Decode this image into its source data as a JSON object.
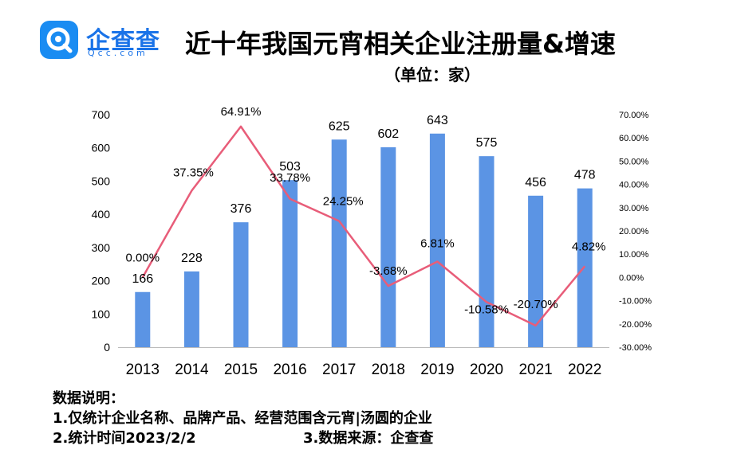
{
  "header": {
    "logo_text": "企查查",
    "logo_sub": "Qcc.com",
    "title": "近十年我国元宵相关企业注册量&增速",
    "unit": "（单位：家）"
  },
  "notes": {
    "heading": "数据说明：",
    "line1": "1.仅统计企业名称、品牌产品、经营范围含元宵|汤圆的企业",
    "line2": "2.统计时间2023/2/2",
    "line3": "3.数据来源：企查查"
  },
  "colors": {
    "bar": "#5b94e4",
    "line": "#e85d79",
    "axis": "#000000"
  },
  "chart_data": {
    "type": "bar",
    "categories": [
      "2013",
      "2014",
      "2015",
      "2016",
      "2017",
      "2018",
      "2019",
      "2020",
      "2021",
      "2022"
    ],
    "series": [
      {
        "type": "bar",
        "axis": "left",
        "values": [
          166,
          228,
          376,
          503,
          625,
          602,
          643,
          575,
          456,
          478
        ],
        "labels": [
          "166",
          "228",
          "376",
          "503",
          "625",
          "602",
          "643",
          "575",
          "456",
          "478"
        ]
      },
      {
        "type": "line",
        "axis": "right",
        "values": [
          0.0,
          37.35,
          64.91,
          33.78,
          24.25,
          -3.68,
          6.81,
          -10.58,
          -20.7,
          4.82
        ],
        "labels": [
          "0.00%",
          "37.35%",
          "64.91%",
          "33.78%",
          "24.25%",
          "-3.68%",
          "6.81%",
          "-10.58%",
          "-20.70%",
          "4.82%"
        ]
      }
    ],
    "y_left": {
      "ylim": [
        0,
        700
      ],
      "ticks": [
        "0",
        "100",
        "200",
        "300",
        "400",
        "500",
        "600",
        "700"
      ]
    },
    "y_right": {
      "ylim": [
        -30,
        70
      ],
      "ticks": [
        "-30.00%",
        "-20.00%",
        "-10.00%",
        "0.00%",
        "10.00%",
        "20.00%",
        "30.00%",
        "40.00%",
        "50.00%",
        "60.00%",
        "70.00%"
      ]
    },
    "grid": false,
    "legend": "none"
  }
}
